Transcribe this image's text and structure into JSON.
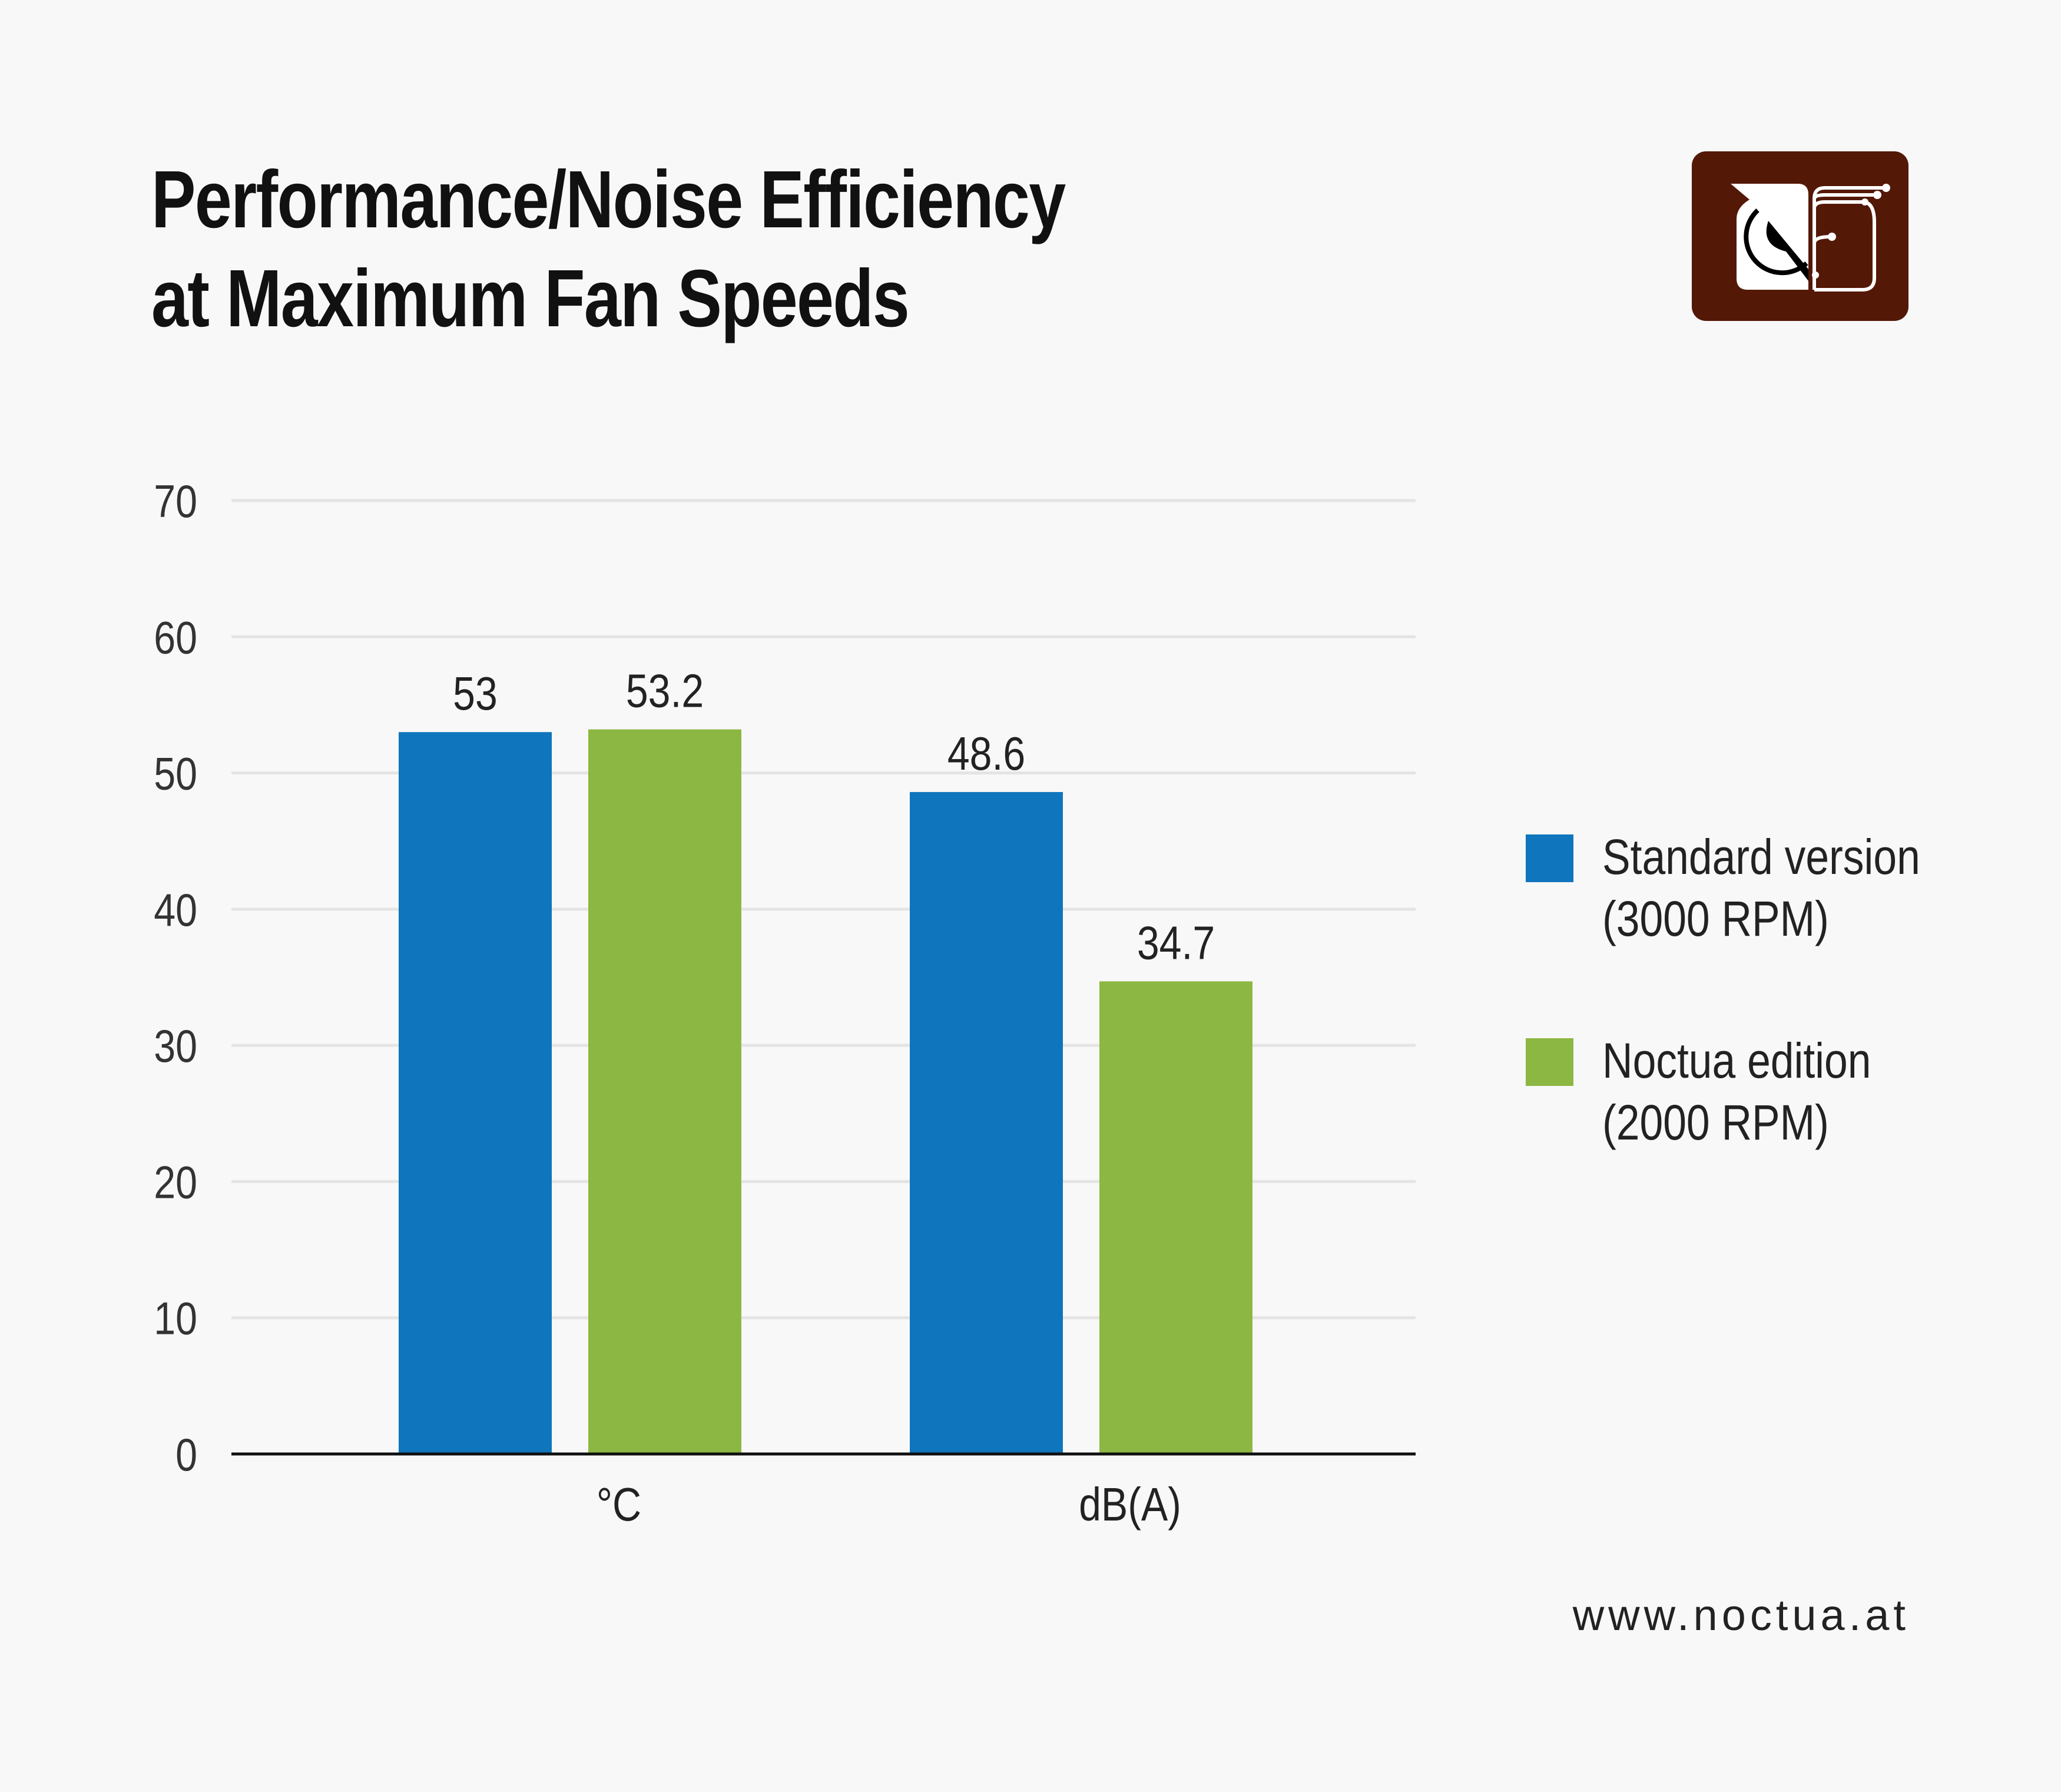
{
  "title_lines": [
    "Performance/Noise Efficiency",
    "at Maximum Fan Speeds"
  ],
  "logo": {
    "name": "noctua-owl-logo",
    "color": "#541807"
  },
  "website": "www.noctua.at",
  "chart_data": {
    "type": "bar",
    "title": "Performance/Noise Efficiency at Maximum Fan Speeds",
    "categories": [
      "°C",
      "dB(A)"
    ],
    "series": [
      {
        "name": "Standard version (3000 RPM)",
        "name_lines": [
          "Standard version",
          "(3000 RPM)"
        ],
        "color": "#0f75bc",
        "values": [
          53,
          48.6
        ],
        "labels": [
          "53",
          "48.6"
        ]
      },
      {
        "name": "Noctua edition (2000 RPM)",
        "name_lines": [
          "Noctua edition",
          "(2000 RPM)"
        ],
        "color": "#8cb742",
        "values": [
          53.2,
          34.7
        ],
        "labels": [
          "53.2",
          "34.7"
        ]
      }
    ],
    "ylim": [
      0,
      70
    ],
    "yticks": [
      "0",
      "10",
      "20",
      "30",
      "40",
      "50",
      "60",
      "70"
    ],
    "grid": true,
    "legend": "right",
    "xlabel": "",
    "ylabel": ""
  }
}
